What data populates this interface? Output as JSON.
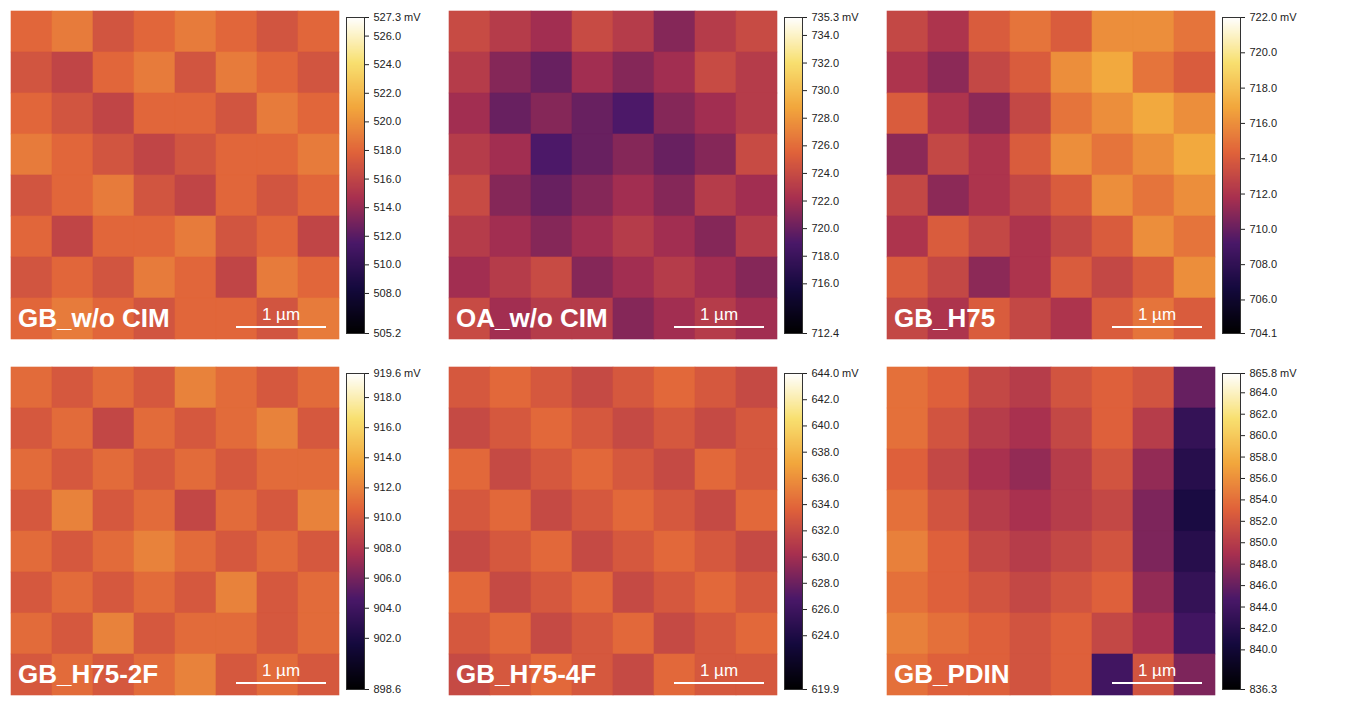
{
  "chart_data": [
    {
      "type": "heatmap",
      "title": "GB_w/o CIM",
      "scale_bar": "1 µm",
      "cells": [
        [
          518,
          519,
          517,
          518,
          519,
          518,
          517,
          518
        ],
        [
          517,
          516,
          518,
          519,
          517,
          519,
          518,
          517
        ],
        [
          518,
          517,
          516,
          518,
          518,
          517,
          519,
          518
        ],
        [
          519,
          518,
          517,
          516,
          517,
          518,
          518,
          519
        ],
        [
          517,
          518,
          519,
          517,
          516,
          518,
          517,
          518
        ],
        [
          518,
          516,
          518,
          518,
          519,
          517,
          518,
          516
        ],
        [
          517,
          518,
          517,
          519,
          518,
          516,
          519,
          518
        ],
        [
          518,
          519,
          518,
          517,
          518,
          518,
          517,
          519
        ]
      ],
      "colorbar_range": [
        505.2,
        527.3
      ],
      "colorbar_ticks": [
        {
          "value": 505.2,
          "label": "505.2"
        },
        {
          "value": 508,
          "label": "508.0"
        },
        {
          "value": 510,
          "label": "510.0"
        },
        {
          "value": 512,
          "label": "512.0"
        },
        {
          "value": 514,
          "label": "514.0"
        },
        {
          "value": 516,
          "label": "516.0"
        },
        {
          "value": 518,
          "label": "518.0"
        },
        {
          "value": 520,
          "label": "520.0"
        },
        {
          "value": 522,
          "label": "522.0"
        },
        {
          "value": 524,
          "label": "524.0"
        },
        {
          "value": 526,
          "label": "526.0"
        },
        {
          "value": 527.3,
          "label": "527.3 mV"
        }
      ]
    },
    {
      "type": "heatmap",
      "title": "OA_w/o CIM",
      "scale_bar": "1 µm",
      "cells": [
        [
          724,
          723,
          722,
          724,
          723,
          721,
          723,
          724
        ],
        [
          723,
          721,
          720,
          722,
          721,
          722,
          724,
          723
        ],
        [
          722,
          720,
          721,
          720,
          719,
          721,
          722,
          723
        ],
        [
          723,
          722,
          719,
          720,
          721,
          720,
          721,
          724
        ],
        [
          724,
          721,
          720,
          721,
          722,
          721,
          723,
          722
        ],
        [
          723,
          722,
          721,
          722,
          723,
          722,
          721,
          723
        ],
        [
          722,
          723,
          724,
          721,
          722,
          723,
          722,
          721
        ],
        [
          724,
          722,
          723,
          723,
          721,
          722,
          723,
          722
        ]
      ],
      "colorbar_range": [
        712.4,
        735.3
      ],
      "colorbar_ticks": [
        {
          "value": 712.4,
          "label": "712.4"
        },
        {
          "value": 716,
          "label": "716.0"
        },
        {
          "value": 718,
          "label": "718.0"
        },
        {
          "value": 720,
          "label": "720.0"
        },
        {
          "value": 722,
          "label": "722.0"
        },
        {
          "value": 724,
          "label": "724.0"
        },
        {
          "value": 726,
          "label": "726.0"
        },
        {
          "value": 728,
          "label": "728.0"
        },
        {
          "value": 730,
          "label": "730.0"
        },
        {
          "value": 732,
          "label": "732.0"
        },
        {
          "value": 734,
          "label": "734.0"
        },
        {
          "value": 735.3,
          "label": "735.3 mV"
        }
      ]
    },
    {
      "type": "heatmap",
      "title": "GB_H75",
      "scale_bar": "1 µm",
      "cells": [
        [
          713,
          712,
          714,
          715,
          714,
          716,
          716,
          715
        ],
        [
          712,
          711,
          713,
          714,
          716,
          717,
          715,
          714
        ],
        [
          714,
          712,
          711,
          713,
          715,
          716,
          717,
          716
        ],
        [
          711,
          713,
          712,
          714,
          716,
          715,
          716,
          717
        ],
        [
          713,
          711,
          712,
          713,
          714,
          716,
          715,
          716
        ],
        [
          712,
          714,
          713,
          712,
          713,
          714,
          716,
          715
        ],
        [
          714,
          713,
          711,
          712,
          714,
          713,
          714,
          716
        ],
        [
          713,
          712,
          714,
          713,
          712,
          714,
          715,
          714
        ]
      ],
      "colorbar_range": [
        704.1,
        722.0
      ],
      "colorbar_ticks": [
        {
          "value": 704.1,
          "label": "704.1"
        },
        {
          "value": 706,
          "label": "706.0"
        },
        {
          "value": 708,
          "label": "708.0"
        },
        {
          "value": 710,
          "label": "710.0"
        },
        {
          "value": 712,
          "label": "712.0"
        },
        {
          "value": 714,
          "label": "714.0"
        },
        {
          "value": 716,
          "label": "716.0"
        },
        {
          "value": 718,
          "label": "718.0"
        },
        {
          "value": 720,
          "label": "720.0"
        },
        {
          "value": 722,
          "label": "722.0 mV"
        }
      ]
    },
    {
      "type": "heatmap",
      "title": "GB_H75-2F",
      "scale_bar": "1 µm",
      "cells": [
        [
          911,
          910,
          911,
          910,
          912,
          911,
          910,
          911
        ],
        [
          910,
          911,
          909,
          911,
          910,
          911,
          912,
          910
        ],
        [
          911,
          910,
          911,
          910,
          911,
          910,
          911,
          911
        ],
        [
          910,
          912,
          910,
          911,
          909,
          911,
          910,
          912
        ],
        [
          911,
          910,
          911,
          912,
          911,
          910,
          911,
          910
        ],
        [
          910,
          911,
          910,
          911,
          910,
          912,
          910,
          911
        ],
        [
          911,
          910,
          912,
          910,
          911,
          911,
          910,
          911
        ],
        [
          910,
          911,
          910,
          911,
          912,
          910,
          911,
          910
        ]
      ],
      "colorbar_range": [
        898.6,
        919.6
      ],
      "colorbar_ticks": [
        {
          "value": 898.6,
          "label": "898.6"
        },
        {
          "value": 902,
          "label": "902.0"
        },
        {
          "value": 904,
          "label": "904.0"
        },
        {
          "value": 906,
          "label": "906.0"
        },
        {
          "value": 908,
          "label": "908.0"
        },
        {
          "value": 910,
          "label": "910.0"
        },
        {
          "value": 912,
          "label": "912.0"
        },
        {
          "value": 914,
          "label": "914.0"
        },
        {
          "value": 916,
          "label": "916.0"
        },
        {
          "value": 918,
          "label": "918.0"
        },
        {
          "value": 919.6,
          "label": "919.6 mV"
        }
      ]
    },
    {
      "type": "heatmap",
      "title": "GB_H75-4F",
      "scale_bar": "1 µm",
      "cells": [
        [
          633,
          634,
          633,
          632,
          633,
          634,
          633,
          632
        ],
        [
          632,
          633,
          634,
          633,
          632,
          633,
          632,
          633
        ],
        [
          634,
          632,
          633,
          634,
          633,
          632,
          634,
          633
        ],
        [
          633,
          634,
          632,
          633,
          634,
          633,
          632,
          634
        ],
        [
          632,
          633,
          634,
          632,
          633,
          634,
          633,
          632
        ],
        [
          634,
          632,
          633,
          634,
          632,
          633,
          634,
          633
        ],
        [
          633,
          634,
          632,
          633,
          634,
          632,
          633,
          634
        ],
        [
          632,
          633,
          634,
          633,
          632,
          634,
          633,
          633
        ]
      ],
      "colorbar_range": [
        619.9,
        644.0
      ],
      "colorbar_ticks": [
        {
          "value": 619.9,
          "label": "619.9"
        },
        {
          "value": 624,
          "label": "624.0"
        },
        {
          "value": 626,
          "label": "626.0"
        },
        {
          "value": 628,
          "label": "628.0"
        },
        {
          "value": 630,
          "label": "630.0"
        },
        {
          "value": 632,
          "label": "632.0"
        },
        {
          "value": 634,
          "label": "634.0"
        },
        {
          "value": 636,
          "label": "636.0"
        },
        {
          "value": 638,
          "label": "638.0"
        },
        {
          "value": 640,
          "label": "640.0"
        },
        {
          "value": 642,
          "label": "642.0"
        },
        {
          "value": 644,
          "label": "644.0 mV"
        }
      ]
    },
    {
      "type": "heatmap",
      "title": "GB_PDIN",
      "scale_bar": "1 µm",
      "cells": [
        [
          854,
          853,
          851,
          850,
          852,
          853,
          852,
          846
        ],
        [
          854,
          852,
          850,
          849,
          851,
          853,
          850,
          843
        ],
        [
          853,
          851,
          849,
          848,
          850,
          852,
          848,
          842
        ],
        [
          854,
          852,
          850,
          849,
          850,
          851,
          847,
          841
        ],
        [
          855,
          853,
          851,
          850,
          851,
          852,
          847,
          842
        ],
        [
          854,
          853,
          852,
          851,
          852,
          853,
          848,
          843
        ],
        [
          855,
          854,
          853,
          852,
          853,
          851,
          849,
          844
        ],
        [
          854,
          853,
          853,
          852,
          853,
          844,
          852,
          847
        ]
      ],
      "colorbar_range": [
        836.3,
        865.8
      ],
      "colorbar_ticks": [
        {
          "value": 836.3,
          "label": "836.3"
        },
        {
          "value": 840,
          "label": "840.0"
        },
        {
          "value": 842,
          "label": "842.0"
        },
        {
          "value": 844,
          "label": "844.0"
        },
        {
          "value": 846,
          "label": "846.0"
        },
        {
          "value": 848,
          "label": "848.0"
        },
        {
          "value": 850,
          "label": "850.0"
        },
        {
          "value": 852,
          "label": "852.0"
        },
        {
          "value": 854,
          "label": "854.0"
        },
        {
          "value": 856,
          "label": "856.0"
        },
        {
          "value": 858,
          "label": "858.0"
        },
        {
          "value": 860,
          "label": "860.0"
        },
        {
          "value": 862,
          "label": "862.0"
        },
        {
          "value": 864,
          "label": "864.0"
        },
        {
          "value": 865.8,
          "label": "865.8 mV"
        }
      ]
    }
  ]
}
